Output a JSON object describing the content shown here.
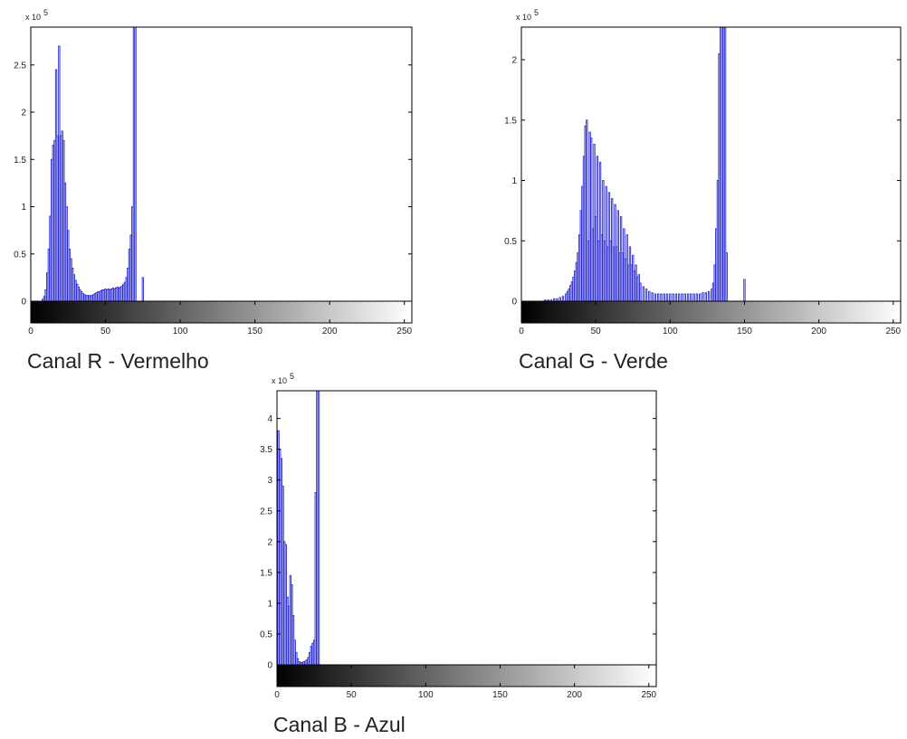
{
  "chart_data": [
    {
      "type": "bar",
      "caption": "Canal R - Vermelho",
      "exponent_label": "x 10",
      "exponent": "5",
      "bar_color": "#2a2ad6",
      "grid": false,
      "xlim": [
        0,
        255
      ],
      "ylim": [
        0,
        2.9
      ],
      "y_unit_scale": 100000,
      "x_ticks": [
        0,
        50,
        100,
        150,
        200,
        250
      ],
      "x_tick_labels": [
        "0",
        "50",
        "100",
        "150",
        "200",
        "250"
      ],
      "y_ticks": [
        0,
        0.5,
        1,
        1.5,
        2,
        2.5
      ],
      "y_tick_labels": [
        "0",
        "0.5",
        "1",
        "1.5",
        "2",
        "2.5"
      ],
      "x": [
        8,
        9,
        10,
        11,
        12,
        13,
        14,
        15,
        16,
        17,
        18,
        19,
        20,
        21,
        22,
        23,
        24,
        25,
        26,
        27,
        28,
        29,
        30,
        31,
        32,
        33,
        34,
        35,
        36,
        37,
        38,
        39,
        40,
        41,
        42,
        43,
        44,
        45,
        46,
        47,
        48,
        49,
        50,
        51,
        52,
        53,
        54,
        55,
        56,
        57,
        58,
        59,
        60,
        61,
        62,
        63,
        64,
        65,
        66,
        67,
        68,
        69,
        70,
        75
      ],
      "values": [
        0.02,
        0.05,
        0.12,
        0.3,
        0.55,
        0.9,
        1.5,
        1.65,
        1.7,
        2.45,
        1.75,
        2.7,
        1.75,
        1.8,
        1.7,
        1.25,
        1.0,
        0.75,
        0.55,
        0.45,
        0.35,
        0.28,
        0.22,
        0.18,
        0.15,
        0.12,
        0.1,
        0.08,
        0.07,
        0.06,
        0.06,
        0.06,
        0.06,
        0.06,
        0.07,
        0.08,
        0.09,
        0.1,
        0.1,
        0.11,
        0.12,
        0.12,
        0.13,
        0.12,
        0.13,
        0.12,
        0.13,
        0.14,
        0.13,
        0.14,
        0.15,
        0.14,
        0.15,
        0.16,
        0.18,
        0.2,
        0.25,
        0.35,
        0.55,
        0.7,
        1.0,
        2.9,
        2.9,
        0.25
      ]
    },
    {
      "type": "bar",
      "caption": "Canal G - Verde",
      "exponent_label": "x 10",
      "exponent": "5",
      "bar_color": "#2a2ad6",
      "grid": false,
      "xlim": [
        0,
        255
      ],
      "ylim": [
        0,
        2.27
      ],
      "y_unit_scale": 100000,
      "x_ticks": [
        0,
        50,
        100,
        150,
        200,
        250
      ],
      "x_tick_labels": [
        "0",
        "50",
        "100",
        "150",
        "200",
        "250"
      ],
      "y_ticks": [
        0,
        0.5,
        1,
        1.5,
        2
      ],
      "y_tick_labels": [
        "0",
        "0.5",
        "1",
        "1.5",
        "2"
      ],
      "x": [
        16,
        18,
        20,
        22,
        24,
        26,
        28,
        30,
        31,
        32,
        33,
        34,
        35,
        36,
        37,
        38,
        39,
        40,
        41,
        42,
        43,
        44,
        45,
        46,
        47,
        48,
        49,
        50,
        51,
        52,
        53,
        54,
        55,
        56,
        57,
        58,
        59,
        60,
        61,
        62,
        63,
        64,
        65,
        66,
        67,
        68,
        69,
        70,
        71,
        72,
        73,
        74,
        75,
        76,
        77,
        78,
        79,
        80,
        82,
        84,
        86,
        88,
        90,
        92,
        94,
        96,
        98,
        100,
        102,
        104,
        106,
        108,
        110,
        112,
        114,
        116,
        118,
        120,
        122,
        124,
        126,
        128,
        129,
        130,
        131,
        132,
        133,
        134,
        135,
        136,
        137,
        138,
        150
      ],
      "values": [
        0.01,
        0.01,
        0.01,
        0.02,
        0.02,
        0.03,
        0.04,
        0.06,
        0.08,
        0.1,
        0.13,
        0.16,
        0.2,
        0.25,
        0.32,
        0.4,
        0.55,
        0.75,
        0.95,
        1.2,
        1.45,
        1.5,
        0.5,
        1.4,
        1.35,
        0.6,
        1.3,
        0.7,
        1.2,
        0.5,
        1.15,
        0.55,
        1.0,
        0.5,
        0.95,
        0.45,
        0.9,
        0.5,
        0.85,
        0.45,
        0.8,
        0.45,
        0.75,
        0.4,
        0.7,
        0.4,
        0.6,
        0.35,
        0.55,
        0.3,
        0.45,
        0.3,
        0.38,
        0.25,
        0.3,
        0.2,
        0.22,
        0.15,
        0.12,
        0.1,
        0.08,
        0.07,
        0.06,
        0.06,
        0.06,
        0.06,
        0.06,
        0.06,
        0.06,
        0.06,
        0.06,
        0.06,
        0.06,
        0.06,
        0.06,
        0.06,
        0.06,
        0.06,
        0.07,
        0.07,
        0.08,
        0.1,
        0.15,
        0.3,
        0.6,
        1.0,
        2.05,
        2.27,
        2.27,
        2.27,
        2.27,
        0.4,
        0.18
      ]
    },
    {
      "type": "bar",
      "caption": "Canal B - Azul",
      "exponent_label": "x 10",
      "exponent": "5",
      "bar_color": "#2a2ad6",
      "grid": false,
      "xlim": [
        0,
        255
      ],
      "ylim": [
        0,
        4.45
      ],
      "y_unit_scale": 100000,
      "x_ticks": [
        0,
        50,
        100,
        150,
        200,
        250
      ],
      "x_tick_labels": [
        "0",
        "50",
        "100",
        "150",
        "200",
        "250"
      ],
      "y_ticks": [
        0,
        0.5,
        1,
        1.5,
        2,
        2.5,
        3,
        3.5,
        4
      ],
      "y_tick_labels": [
        "0",
        "0.5",
        "1",
        "1.5",
        "2",
        "2.5",
        "3",
        "3.5",
        "4"
      ],
      "x": [
        0,
        1,
        2,
        3,
        4,
        5,
        6,
        7,
        8,
        9,
        10,
        11,
        12,
        13,
        14,
        15,
        16,
        17,
        18,
        19,
        20,
        21,
        22,
        23,
        24,
        25,
        26,
        27,
        28
      ],
      "values": [
        0.1,
        3.8,
        3.5,
        3.35,
        2.9,
        2.0,
        1.95,
        1.1,
        0.95,
        1.45,
        1.3,
        0.8,
        0.4,
        0.2,
        0.1,
        0.05,
        0.04,
        0.04,
        0.05,
        0.06,
        0.08,
        0.12,
        0.2,
        0.3,
        0.35,
        0.4,
        2.8,
        4.45,
        4.45
      ]
    }
  ]
}
